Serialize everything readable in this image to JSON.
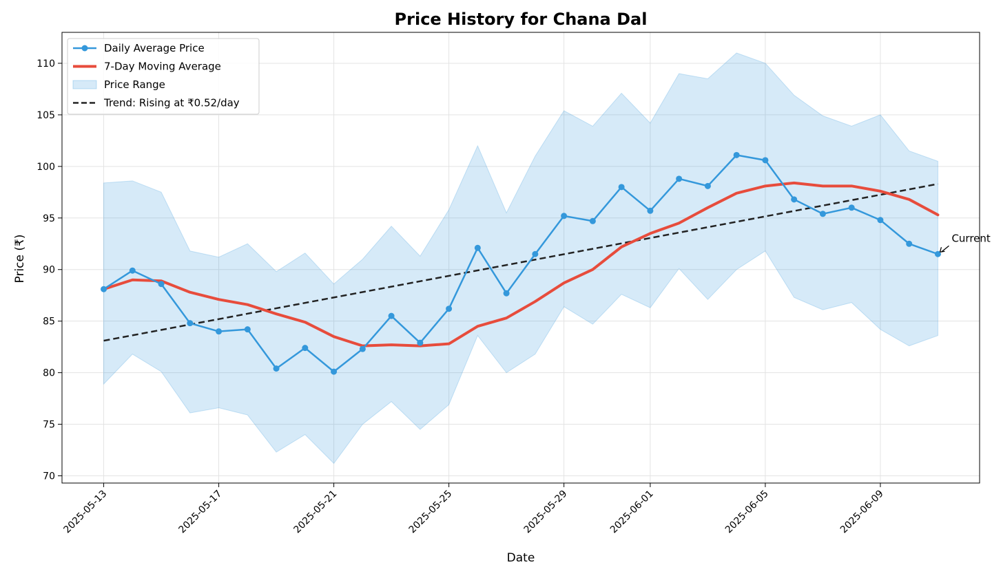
{
  "chart_data": {
    "type": "line",
    "title": "Price History for Chana Dal",
    "xlabel": "Date",
    "ylabel": "Price (₹)",
    "x_start": "2025-05-13",
    "x_ticks": [
      "2025-05-13",
      "2025-05-17",
      "2025-05-21",
      "2025-05-25",
      "2025-05-29",
      "2025-06-01",
      "2025-06-05",
      "2025-06-09"
    ],
    "dates": [
      "2025-05-13",
      "2025-05-14",
      "2025-05-15",
      "2025-05-16",
      "2025-05-17",
      "2025-05-18",
      "2025-05-19",
      "2025-05-20",
      "2025-05-21",
      "2025-05-22",
      "2025-05-23",
      "2025-05-24",
      "2025-05-25",
      "2025-05-26",
      "2025-05-27",
      "2025-05-28",
      "2025-05-29",
      "2025-05-30",
      "2025-05-31",
      "2025-06-01",
      "2025-06-02",
      "2025-06-03",
      "2025-06-04",
      "2025-06-05",
      "2025-06-06",
      "2025-06-07",
      "2025-06-08",
      "2025-06-09",
      "2025-06-10",
      "2025-06-11"
    ],
    "ylim": [
      69.3,
      113.0
    ],
    "y_ticks": [
      70,
      75,
      80,
      85,
      90,
      95,
      100,
      105,
      110
    ],
    "grid": true,
    "legend_position": "top-left",
    "series": [
      {
        "name": "Daily Average Price",
        "kind": "line-markers",
        "color": "#3498db",
        "values": [
          88.1,
          89.9,
          88.6,
          84.8,
          84.0,
          84.2,
          80.4,
          82.4,
          80.1,
          82.3,
          85.5,
          82.9,
          86.2,
          92.1,
          87.7,
          91.5,
          95.2,
          94.7,
          98.0,
          95.7,
          98.8,
          98.1,
          101.1,
          100.6,
          96.8,
          95.4,
          96.0,
          94.8,
          92.5,
          91.5
        ]
      },
      {
        "name": "7-Day Moving Average",
        "kind": "line",
        "color": "#e74c3c",
        "values": [
          88.1,
          89.0,
          88.9,
          87.8,
          87.1,
          86.6,
          85.7,
          84.9,
          83.5,
          82.6,
          82.7,
          82.6,
          82.8,
          84.5,
          85.3,
          86.9,
          88.7,
          90.0,
          92.2,
          93.5,
          94.5,
          96.0,
          97.4,
          98.1,
          98.4,
          98.1,
          98.1,
          97.6,
          96.8,
          95.3
        ]
      },
      {
        "name": "Price Range",
        "kind": "band",
        "color": "#3498db",
        "upper": [
          98.4,
          98.6,
          97.5,
          91.8,
          91.2,
          92.5,
          89.8,
          91.6,
          88.6,
          91.0,
          94.2,
          91.3,
          95.8,
          102.0,
          95.5,
          101.0,
          105.4,
          103.9,
          107.1,
          104.2,
          109.0,
          108.5,
          111.0,
          110.0,
          106.9,
          104.9,
          103.9,
          105.0,
          101.5,
          100.5
        ],
        "lower": [
          78.9,
          81.8,
          80.1,
          76.1,
          76.6,
          75.9,
          72.3,
          74.0,
          71.2,
          75.0,
          77.2,
          74.5,
          76.9,
          83.6,
          80.0,
          81.8,
          86.4,
          84.7,
          87.6,
          86.3,
          90.1,
          87.1,
          90.0,
          91.8,
          87.3,
          86.1,
          86.8,
          84.2,
          82.6,
          83.6
        ]
      },
      {
        "name": "Trend: Rising at ₹0.52/day",
        "kind": "trend",
        "color": "#222222",
        "start": 83.1,
        "end": 98.3
      }
    ],
    "annotations": [
      {
        "text": "Current",
        "target_date": "2025-06-11",
        "target_value": 91.5
      }
    ]
  }
}
